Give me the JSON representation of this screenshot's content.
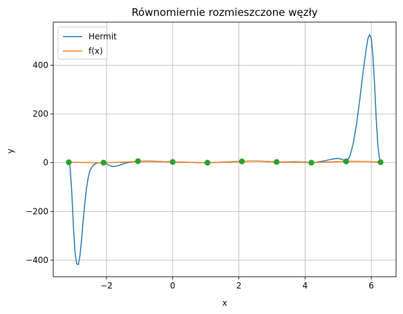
{
  "colors": {
    "hermit": "#1f77b4",
    "fx": "#ff7f0e",
    "nodes": "#2ca02c",
    "grid": "#b0b0b0",
    "axes": "#000000"
  },
  "chart_data": {
    "type": "line",
    "title": "Równomiernie rozmieszczone węzły",
    "xlabel": "x",
    "ylabel": "y",
    "xlim": [
      -3.61,
      6.75
    ],
    "ylim": [
      -468,
      577
    ],
    "xticks": [
      -2,
      0,
      2,
      4,
      6
    ],
    "xtick_labels": [
      "−2",
      "0",
      "2",
      "4",
      "6"
    ],
    "yticks": [
      -400,
      -200,
      0,
      200,
      400
    ],
    "ytick_labels": [
      "−400",
      "−200",
      "0",
      "200",
      "400"
    ],
    "grid": true,
    "legend_position": "upper-left",
    "series": [
      {
        "name": "Hermit",
        "color_key": "hermit",
        "x": [
          -3.14,
          -3.1,
          -3.05,
          -3.0,
          -2.95,
          -2.9,
          -2.85,
          -2.8,
          -2.75,
          -2.7,
          -2.65,
          -2.6,
          -2.55,
          -2.5,
          -2.4,
          -2.3,
          -2.2,
          -2.09,
          -2.0,
          -1.9,
          -1.8,
          -1.7,
          -1.6,
          -1.5,
          -1.4,
          -1.3,
          -1.2,
          -1.05,
          -0.8,
          -0.5,
          -0.2,
          0.0,
          0.3,
          0.6,
          0.8,
          1.05,
          1.3,
          1.6,
          1.9,
          2.09,
          2.4,
          2.7,
          3.0,
          3.14,
          3.4,
          3.7,
          4.0,
          4.19,
          4.4,
          4.6,
          4.8,
          5.0,
          5.15,
          5.24,
          5.35,
          5.45,
          5.55,
          5.65,
          5.75,
          5.85,
          5.9,
          5.95,
          6.0,
          6.05,
          6.1,
          6.15,
          6.2,
          6.25,
          6.28
        ],
        "y": [
          3,
          -20,
          -120,
          -260,
          -370,
          -415,
          -418,
          -380,
          -310,
          -230,
          -160,
          -100,
          -60,
          -32,
          -10,
          -2,
          0,
          0,
          -5,
          -12,
          -16,
          -14,
          -10,
          -5,
          -1,
          2,
          4,
          5,
          6,
          5,
          4,
          3,
          2,
          1,
          0,
          0,
          1,
          3,
          5,
          5,
          7,
          6,
          4,
          3,
          3,
          4,
          3,
          0,
          3,
          8,
          14,
          18,
          12,
          4,
          25,
          75,
          155,
          255,
          370,
          470,
          510,
          525,
          510,
          440,
          320,
          180,
          70,
          15,
          3
        ]
      },
      {
        "name": "f(x)",
        "color_key": "fx",
        "x": [
          -3.14,
          -2.7,
          -2.3,
          -2.09,
          -1.8,
          -1.4,
          -1.05,
          -0.7,
          -0.35,
          0.0,
          0.35,
          0.7,
          1.05,
          1.4,
          1.75,
          2.09,
          2.4,
          2.75,
          3.14,
          3.5,
          3.85,
          4.19,
          4.55,
          4.9,
          5.24,
          5.55,
          5.9,
          6.28
        ],
        "y": [
          2,
          1,
          0,
          0,
          1,
          3,
          6,
          7,
          5,
          3,
          2,
          1,
          0,
          1,
          3,
          5,
          7,
          6,
          3,
          2,
          3,
          0,
          2,
          4,
          5,
          6,
          5,
          2
        ]
      }
    ],
    "nodes": {
      "color_key": "nodes",
      "x": [
        -3.14,
        -2.09,
        -1.05,
        0.0,
        1.05,
        2.09,
        3.14,
        4.19,
        5.24,
        6.28
      ],
      "y": [
        2,
        0,
        6,
        3,
        0,
        5,
        3,
        0,
        5,
        2
      ]
    }
  }
}
